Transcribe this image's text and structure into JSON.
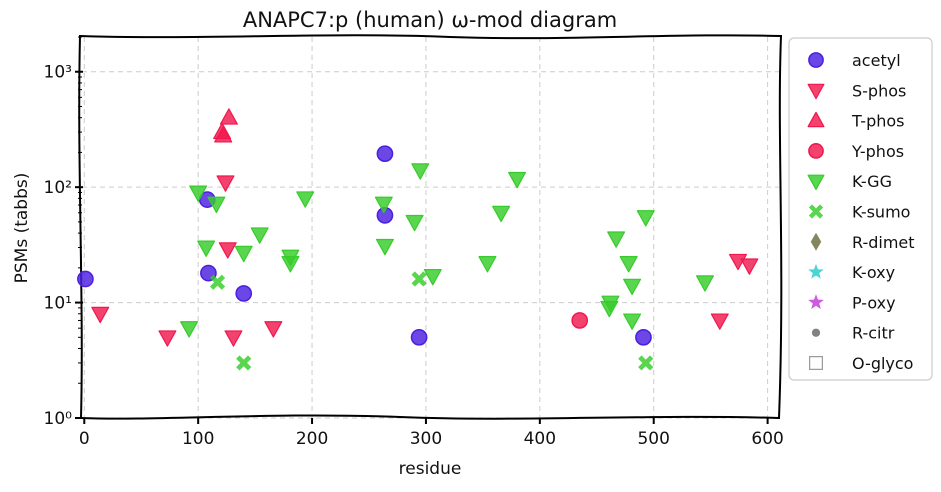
{
  "chart_data": {
    "type": "scatter",
    "title": "ANAPC7:p (human) ω-mod diagram",
    "xlabel": "residue",
    "ylabel": "PSMs (tabbs)",
    "xscale": "linear",
    "yscale": "log",
    "xlim": [
      -2,
      610
    ],
    "ylim": [
      1,
      2000
    ],
    "xticks": [
      0,
      100,
      200,
      300,
      400,
      500,
      600
    ],
    "xtick_labels": [
      "0",
      "100",
      "200",
      "300",
      "400",
      "500",
      "600"
    ],
    "yticks": [
      1,
      10,
      100,
      1000
    ],
    "ytick_labels": [
      "10⁰",
      "10¹",
      "10²",
      "10³"
    ],
    "grid": true,
    "legend_position": "right, outside plot",
    "series": [
      {
        "name": "acetyl",
        "marker": "circle",
        "color": "#4b1fe0",
        "points": [
          [
            1,
            16
          ],
          [
            108,
            78
          ],
          [
            109,
            18
          ],
          [
            140,
            12
          ],
          [
            264,
            195
          ],
          [
            264,
            57
          ],
          [
            294,
            5
          ],
          [
            491,
            5
          ]
        ]
      },
      {
        "name": "S-phos",
        "marker": "triangle-down",
        "color": "#f0184e",
        "points": [
          [
            14,
            8
          ],
          [
            73,
            5
          ],
          [
            124,
            110
          ],
          [
            126,
            29
          ],
          [
            131,
            5
          ],
          [
            166,
            6
          ],
          [
            558,
            7
          ],
          [
            574,
            23
          ],
          [
            584,
            21
          ]
        ]
      },
      {
        "name": "T-phos",
        "marker": "triangle-up",
        "color": "#f0184e",
        "points": [
          [
            121,
            300
          ],
          [
            122,
            280
          ],
          [
            127,
            400
          ]
        ]
      },
      {
        "name": "Y-phos",
        "marker": "circle",
        "color": "#f0184e",
        "points": [
          [
            435,
            7
          ]
        ]
      },
      {
        "name": "K-GG",
        "marker": "triangle-down",
        "color": "#36cc2a",
        "points": [
          [
            92,
            6
          ],
          [
            100,
            90
          ],
          [
            107,
            30
          ],
          [
            116,
            72
          ],
          [
            140,
            27
          ],
          [
            154,
            39
          ],
          [
            181,
            25
          ],
          [
            181,
            22
          ],
          [
            194,
            80
          ],
          [
            263,
            72
          ],
          [
            264,
            31
          ],
          [
            290,
            50
          ],
          [
            295,
            140
          ],
          [
            306,
            17
          ],
          [
            354,
            22
          ],
          [
            366,
            60
          ],
          [
            380,
            118
          ],
          [
            461,
            9
          ],
          [
            462,
            10
          ],
          [
            467,
            36
          ],
          [
            478,
            22
          ],
          [
            481,
            14
          ],
          [
            481,
            7
          ],
          [
            493,
            55
          ],
          [
            545,
            15
          ]
        ]
      },
      {
        "name": "K-sumo",
        "marker": "x-filled",
        "color": "#36cc2a",
        "points": [
          [
            117,
            15
          ],
          [
            140,
            3
          ],
          [
            294,
            16
          ],
          [
            493,
            3
          ]
        ]
      },
      {
        "name": "R-dimet",
        "marker": "diamond",
        "color": "#6b6b3a",
        "points": []
      },
      {
        "name": "K-oxy",
        "marker": "star",
        "color": "#22cccc",
        "points": []
      },
      {
        "name": "P-oxy",
        "marker": "star",
        "color": "#c336d9",
        "points": []
      },
      {
        "name": "R-citr",
        "marker": "dot",
        "color": "#666666",
        "points": []
      },
      {
        "name": "O-glyco",
        "marker": "square-open",
        "color": "#999999",
        "points": []
      }
    ]
  }
}
